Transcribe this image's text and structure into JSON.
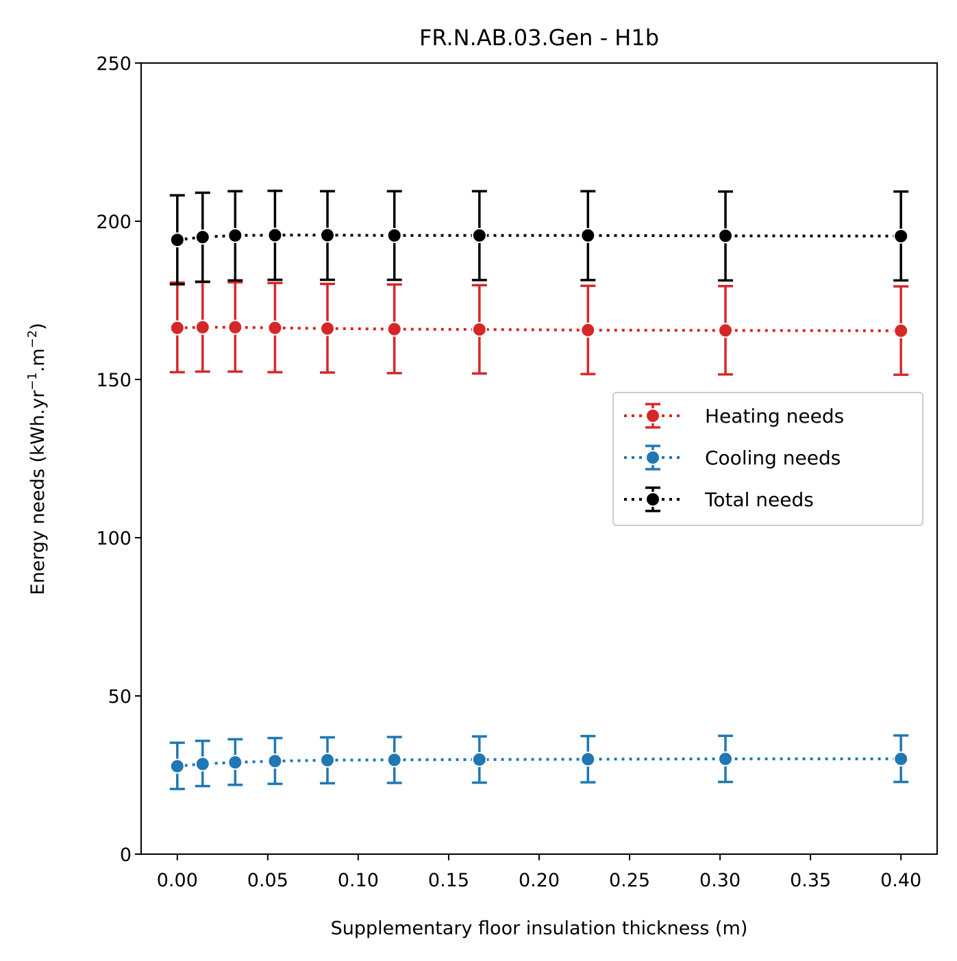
{
  "chart_data": {
    "type": "scatter",
    "title": "FR.N.AB.03.Gen - H1b",
    "xlabel": "Supplementary floor insulation thickness (m)",
    "ylabel_main": "Energy needs (kWh.yr",
    "ylabel_sup1": "−1",
    "ylabel_mid": ".m",
    "ylabel_sup2": "−2",
    "ylabel_end": ")",
    "xlim": [
      -0.02,
      0.42
    ],
    "ylim": [
      0,
      250
    ],
    "xticks": [
      0.0,
      0.05,
      0.1,
      0.15,
      0.2,
      0.25,
      0.3,
      0.35,
      0.4
    ],
    "xtick_labels": [
      "0.00",
      "0.05",
      "0.10",
      "0.15",
      "0.20",
      "0.25",
      "0.30",
      "0.35",
      "0.40"
    ],
    "yticks": [
      0,
      50,
      100,
      150,
      200,
      250
    ],
    "ytick_labels": [
      "0",
      "50",
      "100",
      "150",
      "200",
      "250"
    ],
    "grid": false,
    "legend_position": "center-right",
    "x": [
      0.0,
      0.014,
      0.032,
      0.054,
      0.083,
      0.12,
      0.167,
      0.227,
      0.303,
      0.4
    ],
    "series": [
      {
        "name": "Heating needs",
        "color": "#d62728",
        "values": [
          166.3,
          166.5,
          166.5,
          166.3,
          166.1,
          165.9,
          165.8,
          165.6,
          165.5,
          165.4
        ],
        "err_low": [
          152.3,
          152.5,
          152.5,
          152.3,
          152.2,
          152.0,
          151.9,
          151.7,
          151.6,
          151.5
        ],
        "err_high": [
          180.6,
          180.8,
          180.7,
          180.5,
          180.2,
          180.0,
          179.8,
          179.6,
          179.5,
          179.4
        ]
      },
      {
        "name": "Cooling needs",
        "color": "#1f77b4",
        "values": [
          27.8,
          28.5,
          29.0,
          29.4,
          29.7,
          29.8,
          29.9,
          30.0,
          30.1,
          30.1
        ],
        "err_low": [
          20.6,
          21.5,
          21.9,
          22.2,
          22.4,
          22.5,
          22.6,
          22.7,
          22.8,
          22.8
        ],
        "err_high": [
          35.2,
          35.8,
          36.3,
          36.7,
          36.9,
          37.0,
          37.2,
          37.3,
          37.4,
          37.5
        ]
      },
      {
        "name": "Total needs",
        "color": "#000000",
        "values": [
          194.1,
          195.0,
          195.5,
          195.6,
          195.6,
          195.5,
          195.5,
          195.5,
          195.4,
          195.3
        ],
        "err_low": [
          180.1,
          180.9,
          181.3,
          181.5,
          181.5,
          181.5,
          181.4,
          181.4,
          181.3,
          181.3
        ],
        "err_high": [
          208.2,
          209.0,
          209.5,
          209.6,
          209.5,
          209.5,
          209.5,
          209.5,
          209.4,
          209.4
        ]
      }
    ]
  }
}
